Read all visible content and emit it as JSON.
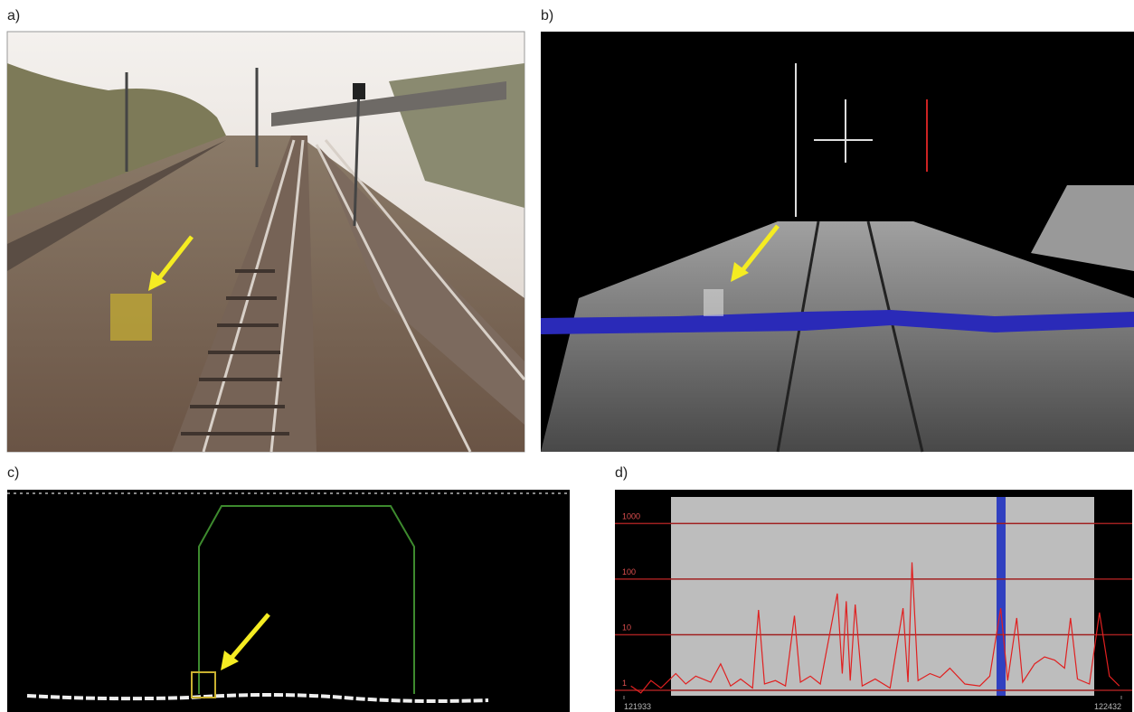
{
  "panels": [
    {
      "label": "a)"
    },
    {
      "label": "b)"
    },
    {
      "label": "c)"
    },
    {
      "label": "d)"
    }
  ],
  "chart_data": {
    "type": "line",
    "log_y": true,
    "grid": true,
    "xlim": [
      121933,
      122432
    ],
    "xticks": [
      121933,
      122432
    ],
    "ylim": [
      0.8,
      3000
    ],
    "yticks": [
      1,
      10,
      100,
      1000
    ],
    "series": [
      {
        "color": "#e02020",
        "x": [
          121940,
          121950,
          121960,
          121970,
          121985,
          121995,
          122005,
          122020,
          122030,
          122040,
          122050,
          122062,
          122068,
          122074,
          122085,
          122095,
          122104,
          122110,
          122120,
          122130,
          122147,
          122152,
          122156,
          122160,
          122165,
          122172,
          122185,
          122200,
          122213,
          122218,
          122222,
          122228,
          122240,
          122250,
          122260,
          122275,
          122290,
          122300,
          122311,
          122318,
          122327,
          122333,
          122345,
          122355,
          122365,
          122375,
          122381,
          122388,
          122400,
          122410,
          122420,
          122430
        ],
        "values": [
          1.2,
          0.9,
          1.5,
          1.1,
          2,
          1.3,
          1.8,
          1.4,
          3,
          1.2,
          1.6,
          1.1,
          28,
          1.3,
          1.5,
          1.2,
          22,
          1.4,
          1.8,
          1.3,
          55,
          2,
          40,
          1.5,
          35,
          1.2,
          1.6,
          1.1,
          30,
          1.4,
          200,
          1.5,
          2,
          1.7,
          2.5,
          1.3,
          1.2,
          1.8,
          30,
          1.5,
          20,
          1.4,
          3,
          4,
          3.5,
          2.5,
          20,
          1.6,
          1.3,
          25,
          1.8,
          1.2
        ]
      }
    ]
  }
}
